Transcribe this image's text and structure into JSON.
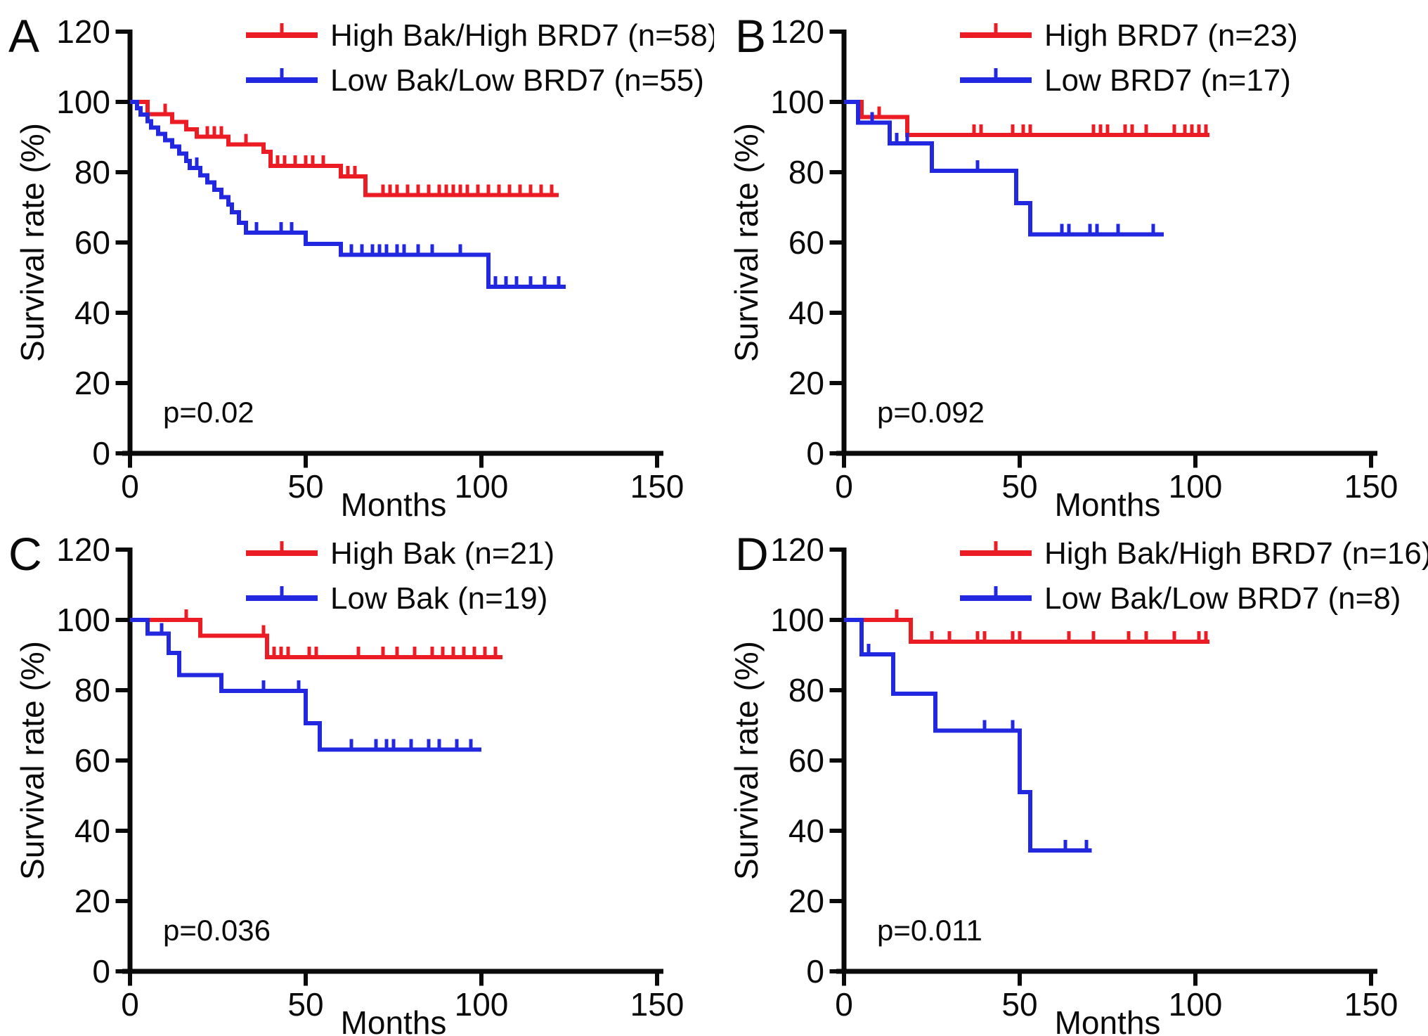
{
  "figure": {
    "background": "#ffffff",
    "colors": {
      "red": "#EC1C24",
      "blue": "#2228DF",
      "axis": "#0a0a0a"
    },
    "x_axis": {
      "label": "Months",
      "ticks": [
        0,
        50,
        100,
        150
      ],
      "min": 0,
      "max": 150
    },
    "y_axis": {
      "label": "Survival rate (%)",
      "ticks": [
        0,
        20,
        40,
        60,
        80,
        100,
        120
      ],
      "min": 0,
      "max": 120
    },
    "legend_position": "top-left-inside",
    "grid": "off"
  },
  "chart_data": [
    {
      "type": "km_step_line",
      "panel_letter": "A",
      "letter_x": 12,
      "p_value": "p=0.02",
      "xlabel": "Months",
      "ylabel": "Survival rate (%)",
      "xlim": [
        0,
        150
      ],
      "ylim": [
        0,
        120
      ],
      "series": [
        {
          "name": "High Bak/High BRD7 (n=58)",
          "color_key": "red",
          "steps": [
            [
              0,
              100
            ],
            [
              5,
              96.5
            ],
            [
              12,
              94.3
            ],
            [
              16,
              92.2
            ],
            [
              19,
              90.1
            ],
            [
              28,
              87.9
            ],
            [
              38,
              85.8
            ],
            [
              40,
              81.8
            ],
            [
              60,
              78.8
            ],
            [
              67,
              73.5
            ]
          ],
          "end_month": 122,
          "censors": [
            10,
            22,
            24,
            26,
            33,
            42,
            44,
            47,
            50,
            52,
            55,
            62,
            64,
            72,
            74,
            76,
            79,
            82,
            85,
            88,
            90,
            92,
            94,
            96,
            99,
            102,
            105,
            108,
            111,
            114,
            117,
            120
          ]
        },
        {
          "name": "Low Bak/Low BRD7 (n=55)",
          "color_key": "blue",
          "steps": [
            [
              0,
              100
            ],
            [
              2,
              98.2
            ],
            [
              3,
              96.4
            ],
            [
              5,
              94.5
            ],
            [
              6,
              92.7
            ],
            [
              8,
              90.9
            ],
            [
              10,
              89.1
            ],
            [
              12,
              87.3
            ],
            [
              14,
              85.3
            ],
            [
              16,
              83.2
            ],
            [
              17,
              81.2
            ],
            [
              20,
              79.1
            ],
            [
              22,
              77.1
            ],
            [
              24,
              75.0
            ],
            [
              26,
              72.9
            ],
            [
              28,
              70.8
            ],
            [
              29,
              68.6
            ],
            [
              31,
              65.6
            ],
            [
              33,
              62.8
            ],
            [
              50,
              59.6
            ],
            [
              60,
              56.5
            ],
            [
              102,
              47.4
            ]
          ],
          "end_month": 124,
          "censors": [
            19,
            36,
            43,
            46,
            63,
            66,
            69,
            71,
            73,
            76,
            78,
            82,
            86,
            94,
            104,
            107,
            110,
            114,
            118,
            122
          ]
        }
      ]
    },
    {
      "type": "km_step_line",
      "panel_letter": "B",
      "letter_x": 30,
      "p_value": "p=0.092",
      "xlabel": "Months",
      "ylabel": "Survival rate (%)",
      "xlim": [
        0,
        150
      ],
      "ylim": [
        0,
        120
      ],
      "series": [
        {
          "name": "High BRD7 (n=23)",
          "color_key": "red",
          "steps": [
            [
              0,
              100
            ],
            [
              5,
              95.7
            ],
            [
              18,
              90.6
            ]
          ],
          "end_month": 104,
          "censors": [
            10,
            37,
            39,
            48,
            51,
            53,
            71,
            73,
            75,
            80,
            82,
            86,
            94,
            97,
            99,
            101,
            103
          ]
        },
        {
          "name": "Low BRD7 (n=17)",
          "color_key": "blue",
          "steps": [
            [
              0,
              100
            ],
            [
              4,
              94.1
            ],
            [
              13,
              88.2
            ],
            [
              25,
              80.4
            ],
            [
              49,
              71.2
            ],
            [
              53,
              62.3
            ]
          ],
          "end_month": 91,
          "censors": [
            8,
            15,
            18,
            38,
            62,
            64,
            70,
            72,
            78,
            88
          ]
        }
      ]
    },
    {
      "type": "km_step_line",
      "panel_letter": "C",
      "letter_x": 12,
      "p_value": "p=0.036",
      "xlabel": "Months",
      "ylabel": "Survival rate (%)",
      "xlim": [
        0,
        150
      ],
      "ylim": [
        0,
        120
      ],
      "series": [
        {
          "name": "High Bak (n=21)",
          "color_key": "red",
          "steps": [
            [
              0,
              100
            ],
            [
              20,
              95.5
            ],
            [
              39,
              89.4
            ]
          ],
          "end_month": 106,
          "censors": [
            16,
            38,
            41,
            43,
            45,
            51,
            53,
            65,
            72,
            76,
            81,
            86,
            89,
            92,
            95,
            98,
            101,
            104
          ]
        },
        {
          "name": "Low Bak (n=19)",
          "color_key": "blue",
          "steps": [
            [
              0,
              100
            ],
            [
              5,
              96.1
            ],
            [
              11,
              90.6
            ],
            [
              14,
              84.3
            ],
            [
              26,
              79.8
            ],
            [
              50,
              70.6
            ],
            [
              54,
              63.1
            ]
          ],
          "end_month": 100,
          "censors": [
            9,
            38,
            48,
            63,
            70,
            73,
            75,
            80,
            85,
            88,
            93,
            97
          ]
        }
      ]
    },
    {
      "type": "km_step_line",
      "panel_letter": "D",
      "letter_x": 30,
      "p_value": "p=0.011",
      "xlabel": "Months",
      "ylabel": "Survival rate (%)",
      "xlim": [
        0,
        150
      ],
      "ylim": [
        0,
        120
      ],
      "series": [
        {
          "name": "High Bak/High BRD7 (n=16)",
          "color_key": "red",
          "steps": [
            [
              0,
              100
            ],
            [
              19,
              93.8
            ]
          ],
          "end_month": 104,
          "censors": [
            15,
            25,
            30,
            38,
            40,
            48,
            50,
            64,
            71,
            81,
            86,
            94,
            101,
            103
          ]
        },
        {
          "name": "Low Bak/Low BRD7 (n=8)",
          "color_key": "blue",
          "steps": [
            [
              0,
              100
            ],
            [
              5,
              90.2
            ],
            [
              14,
              79.0
            ],
            [
              26,
              68.5
            ],
            [
              50,
              51.0
            ],
            [
              53,
              34.4
            ]
          ],
          "end_month": 70.5,
          "censors": [
            7,
            40,
            48,
            63,
            69
          ]
        }
      ]
    }
  ]
}
